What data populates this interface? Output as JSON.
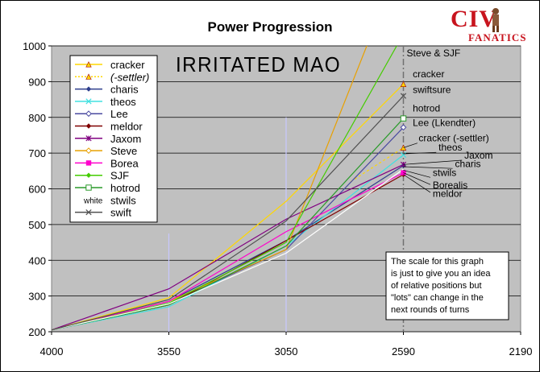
{
  "chart_data": {
    "type": "line",
    "title": "Power Progression",
    "subtitle": "Irritated Mao",
    "x_categories": [
      "4000",
      "3550",
      "3050",
      "2590",
      "2190"
    ],
    "y_ticks": [
      "200",
      "300",
      "400",
      "500",
      "600",
      "700",
      "800",
      "900",
      "1000"
    ],
    "ylim": [
      200,
      1000
    ],
    "grid": "horizontal",
    "legend_position": "top-left",
    "legend": [
      {
        "name": "cracker",
        "color": "#ffd700",
        "marker": "triangle",
        "dash": false
      },
      {
        "name": "(-settler)",
        "color": "#ffd700",
        "marker": "triangle",
        "dash": true
      },
      {
        "name": "charis",
        "color": "#2e3e8c",
        "marker": "diamond",
        "dash": false
      },
      {
        "name": "theos",
        "color": "#40e0e0",
        "marker": "x",
        "dash": false
      },
      {
        "name": "Lee",
        "color": "#4a4aa0",
        "marker": "diamond-open",
        "dash": false
      },
      {
        "name": "meldor",
        "color": "#800000",
        "marker": "diamond",
        "dash": false
      },
      {
        "name": "Jaxom",
        "color": "#800080",
        "marker": "star",
        "dash": false
      },
      {
        "name": "Steve",
        "color": "#e8a000",
        "marker": "diamond-open",
        "dash": false
      },
      {
        "name": "Borea",
        "color": "#ff00cc",
        "marker": "square",
        "dash": false
      },
      {
        "name": "SJF",
        "color": "#44cc00",
        "marker": "diamond",
        "dash": false
      },
      {
        "name": "hotrod",
        "color": "#2a9a2a",
        "marker": "square-open",
        "dash": false
      },
      {
        "name": "stwils",
        "color": "#ffffff",
        "marker": "white-text",
        "dash": false
      },
      {
        "name": "swift",
        "color": "#505050",
        "marker": "x",
        "dash": false
      }
    ],
    "legend_white_marker": "white",
    "series": [
      {
        "name": "cracker",
        "color": "#ffd700",
        "dash": false,
        "points": [
          [
            0,
            205
          ],
          [
            1,
            295
          ],
          [
            2,
            565
          ],
          [
            3,
            893
          ]
        ]
      },
      {
        "name": "(-settler)",
        "color": "#ffd700",
        "dash": true,
        "points": [
          [
            2.55,
            620
          ],
          [
            3,
            715
          ]
        ]
      },
      {
        "name": "charis",
        "color": "#2e3e8c",
        "dash": false,
        "points": [
          [
            0,
            205
          ],
          [
            1,
            285
          ],
          [
            2,
            455
          ],
          [
            3,
            665
          ]
        ]
      },
      {
        "name": "theos",
        "color": "#40e0e0",
        "dash": false,
        "points": [
          [
            0,
            205
          ],
          [
            1,
            270
          ],
          [
            2,
            440
          ],
          [
            3,
            695
          ]
        ]
      },
      {
        "name": "Lee",
        "color": "#4a4aa0",
        "dash": false,
        "points": [
          [
            0,
            205
          ],
          [
            1,
            280
          ],
          [
            2,
            430
          ],
          [
            3,
            772
          ]
        ]
      },
      {
        "name": "meldor",
        "color": "#800000",
        "dash": false,
        "points": [
          [
            0,
            205
          ],
          [
            1,
            275
          ],
          [
            2,
            455
          ],
          [
            3,
            640
          ]
        ]
      },
      {
        "name": "Jaxom",
        "color": "#800080",
        "dash": false,
        "points": [
          [
            0,
            205
          ],
          [
            1,
            320
          ],
          [
            2,
            515
          ],
          [
            3,
            668
          ]
        ]
      },
      {
        "name": "Steve",
        "color": "#e8a000",
        "dash": false,
        "points": [
          [
            0,
            205
          ],
          [
            1,
            285
          ],
          [
            2,
            430
          ],
          [
            2.7,
            1010
          ]
        ]
      },
      {
        "name": "Borea",
        "color": "#ff00cc",
        "dash": false,
        "points": [
          [
            0,
            205
          ],
          [
            1,
            285
          ],
          [
            2,
            480
          ],
          [
            3,
            645
          ]
        ]
      },
      {
        "name": "SJF",
        "color": "#44cc00",
        "dash": false,
        "points": [
          [
            0,
            205
          ],
          [
            1,
            280
          ],
          [
            2,
            450
          ],
          [
            2.96,
            1010
          ]
        ]
      },
      {
        "name": "hotrod",
        "color": "#2a9a2a",
        "dash": false,
        "points": [
          [
            0,
            205
          ],
          [
            1,
            275
          ],
          [
            2,
            440
          ],
          [
            3,
            797
          ]
        ]
      },
      {
        "name": "stwils",
        "color": "#ffffff",
        "dash": false,
        "points": [
          [
            0,
            205
          ],
          [
            1,
            278
          ],
          [
            2,
            420
          ],
          [
            3,
            655
          ]
        ]
      },
      {
        "name": "swift",
        "color": "#505050",
        "dash": false,
        "points": [
          [
            0,
            205
          ],
          [
            1,
            290
          ],
          [
            2,
            510
          ],
          [
            3,
            860
          ]
        ]
      }
    ],
    "vertical_markers": [
      {
        "x": 1,
        "y_top": 475,
        "color": "#c8c8ff",
        "style": "solid"
      },
      {
        "x": 2,
        "y_top": 800,
        "color": "#c8c8ff",
        "style": "solid"
      },
      {
        "x": 3,
        "y_top": 1000,
        "color": "#707070",
        "style": "dashdot",
        "label": "Steve & SJF"
      }
    ],
    "end_labels": [
      {
        "text": "cracker",
        "x": 3.08,
        "y": 912
      },
      {
        "text": "swiftsure",
        "x": 3.08,
        "y": 868
      },
      {
        "text": "hotrod",
        "x": 3.08,
        "y": 816
      },
      {
        "text": "Lee (Lkendter)",
        "x": 3.08,
        "y": 776
      },
      {
        "text": "cracker (-settler)",
        "x": 3.13,
        "y": 733
      },
      {
        "text": "theos",
        "x": 3.3,
        "y": 707
      },
      {
        "text": "Jaxom",
        "x": 3.52,
        "y": 684
      },
      {
        "text": "charis",
        "x": 3.44,
        "y": 661
      },
      {
        "text": "stwils",
        "x": 3.25,
        "y": 636
      },
      {
        "text": "Borealis",
        "x": 3.25,
        "y": 601
      },
      {
        "text": "meldor",
        "x": 3.25,
        "y": 577
      }
    ],
    "note": [
      "The scale for this graph",
      "is just to give you an idea",
      "of relative positions but",
      "\"lots\" can change in the",
      "next rounds of turns"
    ]
  },
  "logo": {
    "line1": "CIV",
    "line2": "FANATICS"
  }
}
